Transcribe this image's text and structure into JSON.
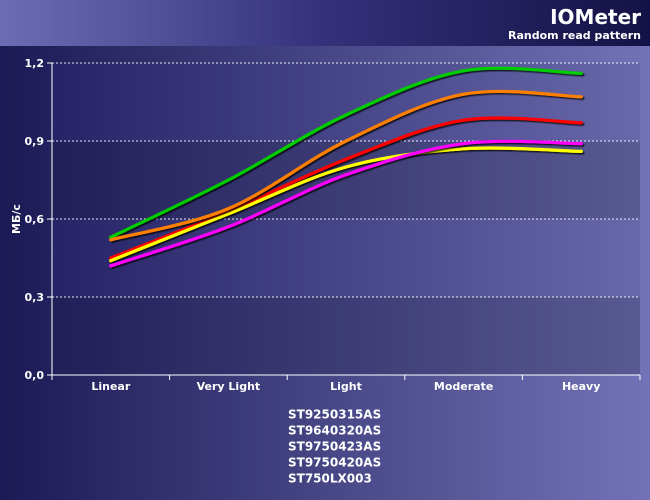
{
  "chart_data": {
    "type": "line",
    "title": "IOMeter",
    "subtitle": "Random read pattern",
    "ylabel": "МБ/с",
    "xlabel": "",
    "categories": [
      "Linear",
      "Very Light",
      "Light",
      "Moderate",
      "Heavy"
    ],
    "ylim": [
      0,
      1.2
    ],
    "yticks": [
      "0,0",
      "0,3",
      "0,6",
      "0,9",
      "1,2"
    ],
    "ytick_values": [
      0,
      0.3,
      0.6,
      0.9,
      1.2
    ],
    "grid": true,
    "legend_position": "bottom",
    "series": [
      {
        "name": "ST9250315AS",
        "color": "#ff0000",
        "values": [
          0.45,
          0.63,
          0.83,
          0.98,
          0.97
        ]
      },
      {
        "name": "ST9640320AS",
        "color": "#ffff00",
        "values": [
          0.44,
          0.62,
          0.8,
          0.87,
          0.86
        ]
      },
      {
        "name": "ST9750423AS",
        "color": "#ff00ff",
        "values": [
          0.42,
          0.57,
          0.77,
          0.89,
          0.89
        ]
      },
      {
        "name": "ST9750420AS",
        "color": "#00cc00",
        "values": [
          0.53,
          0.75,
          1.0,
          1.17,
          1.16
        ]
      },
      {
        "name": "ST750LX003",
        "color": "#ff7f00",
        "values": [
          0.52,
          0.64,
          0.9,
          1.08,
          1.07
        ]
      }
    ]
  }
}
